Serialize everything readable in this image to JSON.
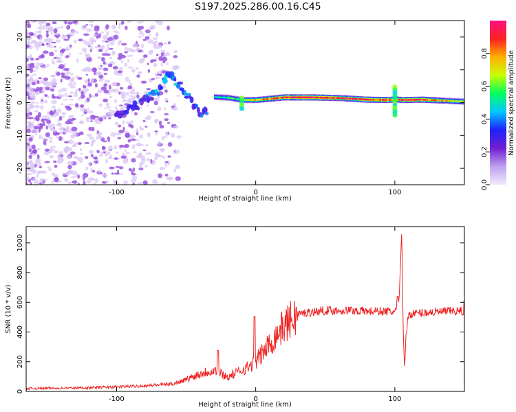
{
  "title": "S197.2025.286.00.16.C45",
  "colors": {
    "snr_line": "#ee2222",
    "blob_violet": "#9a55e0",
    "blob_light": "#d8c4f4",
    "axis": "#000000"
  },
  "colormap_stops": [
    "#f0eaff",
    "#c0a0f0",
    "#7020d0",
    "#2020ff",
    "#00c8ff",
    "#00ff60",
    "#c8ff00",
    "#ffb000",
    "#ff2020",
    "#ff1080"
  ],
  "chart_data": [
    {
      "id": "spectrogram",
      "type": "heatmap",
      "xlabel": "Height of straight line (km)",
      "ylabel": "Frequency (Hz)",
      "xlim": [
        -165,
        150
      ],
      "ylim": [
        -25,
        25
      ],
      "xticks": [
        -100,
        0,
        100
      ],
      "xtick_labels": [
        "-100",
        "0",
        "100"
      ],
      "yticks": [
        20,
        10,
        0,
        -10,
        -20
      ],
      "ytick_labels": [
        "20",
        "10",
        "0",
        "-10",
        "-20"
      ],
      "colorbar": {
        "label": "Normalized spectral amplitude",
        "range": [
          0,
          1
        ],
        "ticks": [
          0.0,
          0.2,
          0.4,
          0.6,
          0.8
        ],
        "tick_labels": [
          "0.0",
          "0.2",
          "0.4",
          "0.6",
          "0.8"
        ]
      },
      "ridge": {
        "x": [
          -30,
          -20,
          -10,
          0,
          10,
          20,
          40,
          60,
          80,
          95,
          100,
          105,
          120,
          140,
          150
        ],
        "frequency": [
          1.7,
          1.5,
          0.8,
          0.8,
          1.2,
          1.6,
          1.6,
          1.4,
          0.9,
          0.8,
          1.0,
          0.8,
          0.9,
          0.5,
          0.3
        ],
        "amplitude": [
          0.45,
          0.55,
          0.6,
          0.75,
          0.8,
          0.92,
          0.98,
          0.88,
          0.92,
          0.85,
          0.75,
          0.95,
          0.88,
          0.7,
          0.65
        ]
      },
      "onset_ridge": {
        "x": [
          -100,
          -90,
          -80,
          -70,
          -62,
          -55,
          -48,
          -40,
          -35
        ],
        "frequency": [
          -3.5,
          -2.0,
          0.5,
          3.5,
          9.5,
          5.5,
          2.0,
          -3.5,
          -2.5
        ],
        "amplitude": [
          0.25,
          0.3,
          0.35,
          0.4,
          0.45,
          0.42,
          0.35,
          0.32,
          0.38
        ]
      }
    },
    {
      "id": "snr",
      "type": "line",
      "xlabel": "Height of straight line (km)",
      "ylabel": "SNR (10 * v/v)",
      "xlim": [
        -165,
        150
      ],
      "ylim": [
        0,
        1110
      ],
      "xticks": [
        -100,
        0,
        100
      ],
      "xtick_labels": [
        "-100",
        "0",
        "100"
      ],
      "yticks": [
        0,
        200,
        400,
        600,
        800,
        1000
      ],
      "ytick_labels": [
        "0",
        "200",
        "400",
        "600",
        "800",
        "1000"
      ],
      "series": [
        {
          "name": "SNR",
          "x": [
            -165,
            -140,
            -120,
            -100,
            -80,
            -60,
            -50,
            -40,
            -30,
            -20,
            -10,
            -5,
            0,
            5,
            10,
            15,
            20,
            25,
            30,
            40,
            50,
            60,
            70,
            80,
            90,
            100,
            103,
            105,
            106,
            107,
            108,
            110,
            120,
            130,
            140,
            150
          ],
          "y": [
            20,
            22,
            25,
            30,
            38,
            50,
            80,
            120,
            145,
            95,
            145,
            165,
            200,
            260,
            320,
            380,
            440,
            480,
            520,
            535,
            545,
            545,
            545,
            540,
            540,
            535,
            600,
            1100,
            400,
            160,
            380,
            520,
            530,
            535,
            540,
            540
          ]
        }
      ],
      "annotations": [
        {
          "x": -27,
          "y": 275
        },
        {
          "x": -1,
          "y": 505
        },
        {
          "x": 102,
          "y": 640
        },
        {
          "x": 150,
          "y": 610
        }
      ]
    }
  ]
}
